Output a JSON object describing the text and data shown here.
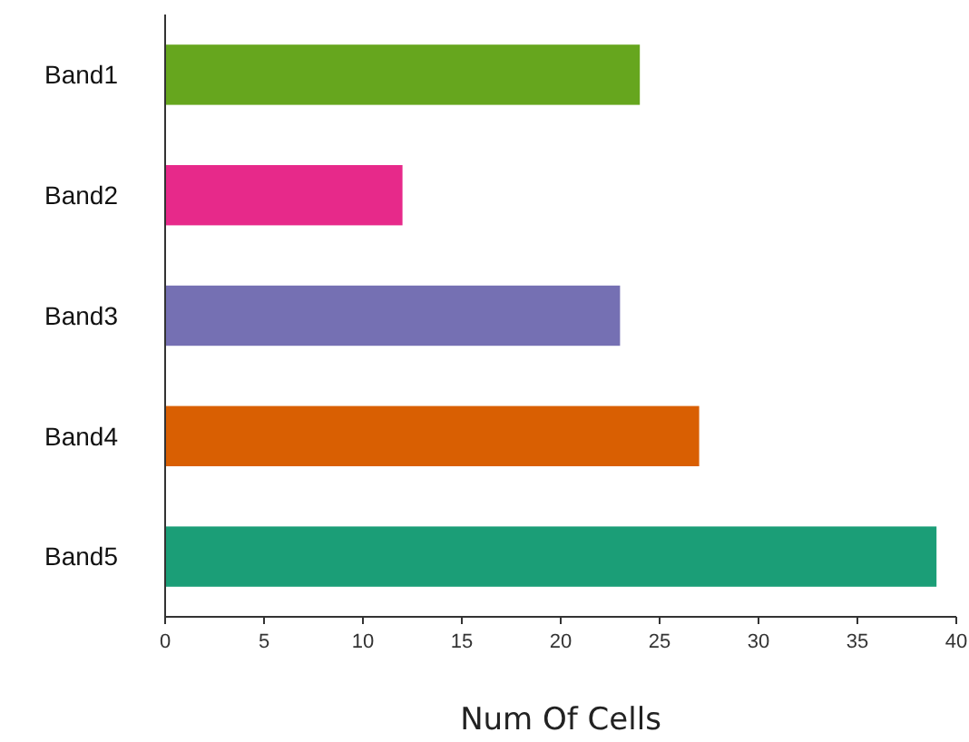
{
  "chart_data": {
    "type": "bar",
    "orientation": "horizontal",
    "xlabel": "Num Of Cells",
    "categories": [
      "Band1",
      "Band2",
      "Band3",
      "Band4",
      "Band5"
    ],
    "values": [
      24,
      12,
      23,
      27,
      39
    ],
    "colors": [
      "#66a61e",
      "#e7298a",
      "#7570b3",
      "#d95f02",
      "#1b9e77"
    ],
    "xlim": [
      0,
      40
    ],
    "xticks": [
      0,
      5,
      10,
      15,
      20,
      25,
      30,
      35,
      40
    ],
    "grid": false
  }
}
